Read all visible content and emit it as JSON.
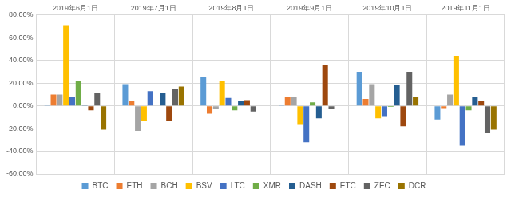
{
  "chart_data": {
    "type": "bar",
    "categories": [
      "2019年6月1日",
      "2019年7月1日",
      "2019年8月1日",
      "2019年9月1日",
      "2019年10月1日",
      "2019年11月1日"
    ],
    "series": [
      {
        "name": "BTC",
        "color": "#5B9BD5",
        "values": [
          0.5,
          19,
          25,
          1,
          30,
          -12
        ]
      },
      {
        "name": "ETH",
        "color": "#ED7D31",
        "values": [
          10,
          4,
          -7,
          8,
          6,
          -2
        ]
      },
      {
        "name": "BCH",
        "color": "#A5A5A5",
        "values": [
          10,
          -22,
          -3,
          8,
          19,
          10
        ]
      },
      {
        "name": "BSV",
        "color": "#FFC000",
        "values": [
          71,
          -13,
          22,
          -16,
          -11,
          44
        ]
      },
      {
        "name": "LTC",
        "color": "#4472C4",
        "values": [
          8,
          13,
          7,
          -32,
          -9,
          -35
        ]
      },
      {
        "name": "XMR",
        "color": "#70AD47",
        "values": [
          22,
          0,
          -4,
          3,
          -1,
          -4
        ]
      },
      {
        "name": "DASH",
        "color": "#255E91",
        "values": [
          1,
          11,
          4,
          -11,
          18,
          8
        ]
      },
      {
        "name": "ETC",
        "color": "#9E480E",
        "values": [
          -4,
          -13,
          5,
          36,
          -18,
          4
        ]
      },
      {
        "name": "ZEC",
        "color": "#636363",
        "values": [
          11,
          15,
          -5,
          -3,
          30,
          -24
        ]
      },
      {
        "name": "DCR",
        "color": "#997300",
        "values": [
          -21,
          17,
          0,
          0,
          8,
          -21
        ]
      }
    ],
    "ylim": [
      -60,
      80
    ],
    "yticks": [
      {
        "value": -60,
        "label": "-60.00%"
      },
      {
        "value": -40,
        "label": "-40.00%"
      },
      {
        "value": -20,
        "label": "-20.00%"
      },
      {
        "value": 0,
        "label": "0.00%"
      },
      {
        "value": 20,
        "label": "20.00%"
      },
      {
        "value": 40,
        "label": "40.00%"
      },
      {
        "value": 60,
        "label": "60.00%"
      },
      {
        "value": 80,
        "label": "80.00%"
      }
    ],
    "grid": true,
    "legend": "bottom"
  }
}
